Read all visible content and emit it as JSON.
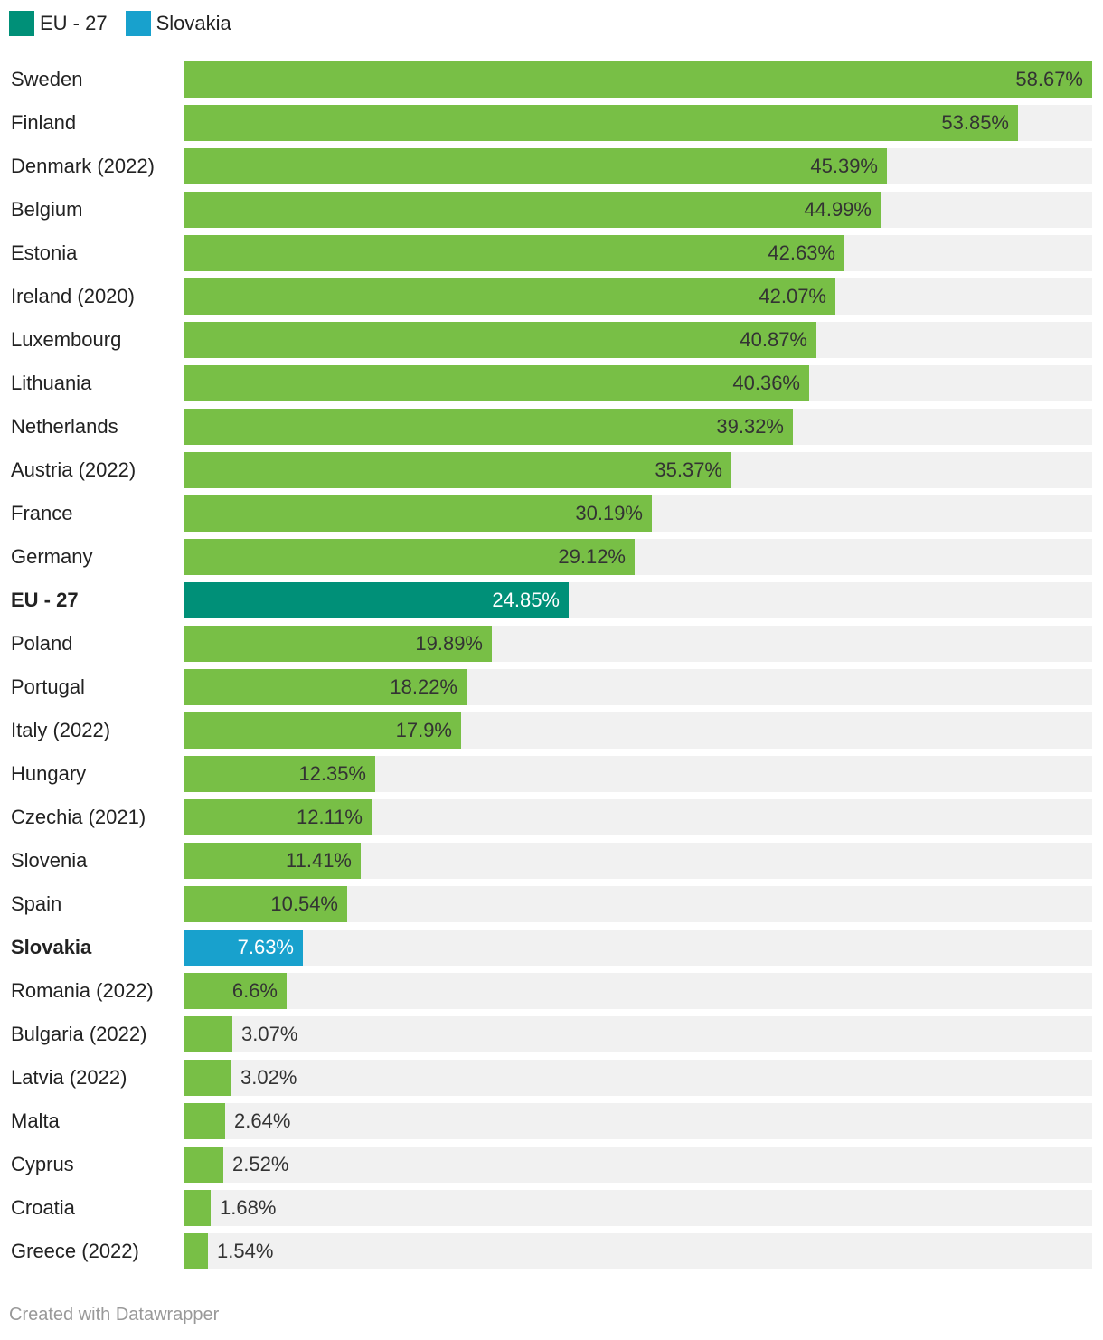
{
  "legend": {
    "items": [
      {
        "label": "EU - 27",
        "color": "#009078"
      },
      {
        "label": "Slovakia",
        "color": "#18a1cd"
      }
    ]
  },
  "colors": {
    "default_bar": "#78bf46",
    "eu_bar": "#009078",
    "slovakia_bar": "#18a1cd",
    "track": "#f1f1f1"
  },
  "chart_data": {
    "type": "bar",
    "orientation": "horizontal",
    "title": "",
    "xlabel": "",
    "ylabel": "",
    "xlim": [
      0,
      58.67
    ],
    "value_suffix": "%",
    "categories": [
      "Sweden",
      "Finland",
      "Denmark (2022)",
      "Belgium",
      "Estonia",
      "Ireland (2020)",
      "Luxembourg",
      "Lithuania",
      "Netherlands",
      "Austria (2022)",
      "France",
      "Germany",
      "EU - 27",
      "Poland",
      "Portugal",
      "Italy (2022)",
      "Hungary",
      "Czechia (2021)",
      "Slovenia",
      "Spain",
      "Slovakia",
      "Romania (2022)",
      "Bulgaria (2022)",
      "Latvia (2022)",
      "Malta",
      "Cyprus",
      "Croatia",
      "Greece (2022)"
    ],
    "values": [
      58.67,
      53.85,
      45.39,
      44.99,
      42.63,
      42.07,
      40.87,
      40.36,
      39.32,
      35.37,
      30.19,
      29.12,
      24.85,
      19.89,
      18.22,
      17.9,
      12.35,
      12.11,
      11.41,
      10.54,
      7.63,
      6.6,
      3.07,
      3.02,
      2.64,
      2.52,
      1.68,
      1.54
    ],
    "labels": [
      "58.67%",
      "53.85%",
      "45.39%",
      "44.99%",
      "42.63%",
      "42.07%",
      "40.87%",
      "40.36%",
      "39.32%",
      "35.37%",
      "30.19%",
      "29.12%",
      "24.85%",
      "19.89%",
      "18.22%",
      "17.9%",
      "12.35%",
      "12.11%",
      "11.41%",
      "10.54%",
      "7.63%",
      "6.6%",
      "3.07%",
      "3.02%",
      "2.64%",
      "2.52%",
      "1.68%",
      "1.54%"
    ],
    "highlighted": [
      "EU - 27",
      "Slovakia"
    ]
  },
  "footer": {
    "credit": "Created with Datawrapper"
  }
}
